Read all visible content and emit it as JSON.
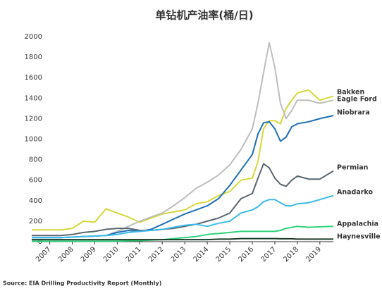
{
  "chart_data": {
    "type": "line",
    "title": "单钻机产油率(桶/日)",
    "source": "Source: EIA Drilling Productivity Report (Monthly)",
    "x": [
      2006.2,
      2007.5,
      2008,
      2008.5,
      2009,
      2009.5,
      2010,
      2010.5,
      2011,
      2011.5,
      2012,
      2012.5,
      2013,
      2013.5,
      2014,
      2014.5,
      2015,
      2015.5,
      2016,
      2016.25,
      2016.5,
      2016.75,
      2017,
      2017.25,
      2017.5,
      2017.75,
      2018,
      2018.5,
      2019,
      2019.6
    ],
    "xlim": [
      2006.2,
      2019.6
    ],
    "xticks": [
      2007,
      2008,
      2009,
      2010,
      2011,
      2012,
      2013,
      2014,
      2015,
      2016,
      2017,
      2018,
      2019
    ],
    "ylim": [
      0,
      2000
    ],
    "yticks": [
      0,
      200,
      400,
      600,
      800,
      1000,
      1200,
      1400,
      1600,
      1800,
      2000
    ],
    "series": [
      {
        "name": "Bakken",
        "color": "#d6d83a",
        "values": [
          115,
          115,
          130,
          200,
          190,
          320,
          280,
          240,
          190,
          230,
          270,
          290,
          310,
          370,
          390,
          450,
          490,
          600,
          620,
          780,
          1100,
          1180,
          1180,
          1150,
          1300,
          1380,
          1450,
          1480,
          1380,
          1420
        ]
      },
      {
        "name": "Eagle Ford",
        "color": "#bdbdbd",
        "values": [
          null,
          null,
          null,
          null,
          null,
          60,
          100,
          150,
          200,
          240,
          280,
          350,
          430,
          520,
          580,
          650,
          750,
          900,
          1100,
          1350,
          1650,
          1940,
          1700,
          1350,
          1200,
          1280,
          1380,
          1380,
          1350,
          1380
        ]
      },
      {
        "name": "Niobrara",
        "color": "#1f6fb8",
        "values": [
          40,
          40,
          45,
          50,
          55,
          60,
          90,
          110,
          100,
          120,
          170,
          220,
          270,
          310,
          350,
          420,
          550,
          700,
          850,
          1050,
          1160,
          1170,
          1100,
          980,
          1020,
          1120,
          1150,
          1170,
          1200,
          1230
        ]
      },
      {
        "name": "Permian",
        "color": "#5b666e",
        "values": [
          60,
          60,
          70,
          90,
          100,
          120,
          130,
          130,
          110,
          110,
          120,
          130,
          150,
          170,
          200,
          230,
          280,
          420,
          470,
          620,
          760,
          720,
          620,
          560,
          540,
          600,
          640,
          610,
          610,
          690
        ]
      },
      {
        "name": "Anadarko",
        "color": "#3bbbe9",
        "values": [
          40,
          40,
          45,
          50,
          55,
          60,
          70,
          90,
          100,
          110,
          120,
          140,
          160,
          170,
          150,
          180,
          200,
          280,
          310,
          340,
          390,
          410,
          410,
          380,
          350,
          350,
          370,
          380,
          410,
          450
        ]
      },
      {
        "name": "Appalachia",
        "color": "#2fd37b",
        "values": [
          5,
          5,
          5,
          5,
          5,
          5,
          5,
          8,
          10,
          15,
          20,
          30,
          40,
          50,
          70,
          80,
          90,
          100,
          100,
          100,
          100,
          100,
          100,
          110,
          130,
          140,
          150,
          140,
          145,
          150
        ]
      },
      {
        "name": "Haynesville",
        "color": "#1c3b2b",
        "values": [
          20,
          20,
          20,
          20,
          20,
          20,
          20,
          20,
          20,
          20,
          20,
          20,
          20,
          20,
          20,
          25,
          25,
          30,
          30,
          30,
          30,
          30,
          30,
          28,
          28,
          28,
          25,
          25,
          25,
          25
        ]
      }
    ]
  }
}
